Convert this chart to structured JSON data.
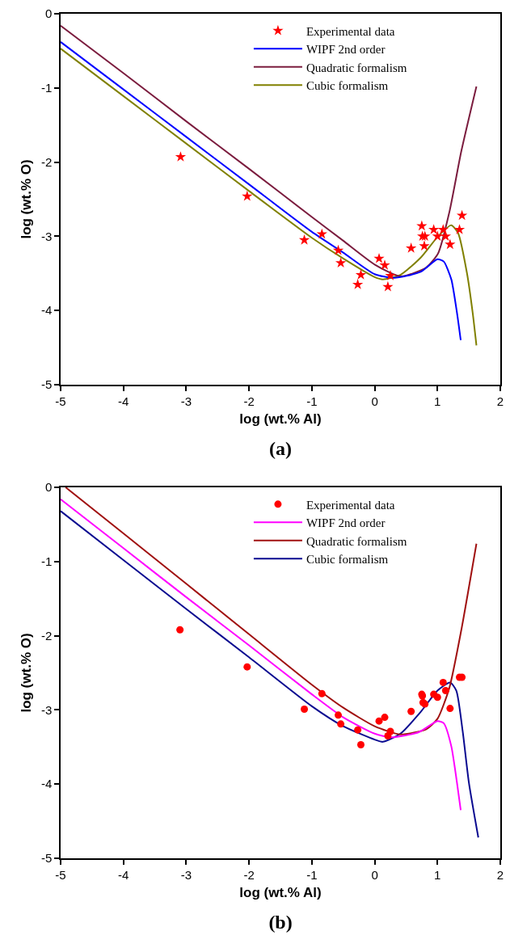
{
  "chart_data": [
    {
      "type": "scatter",
      "title": "(a)",
      "xlabel": "log (wt.% Al)",
      "ylabel": "log (wt.% O)",
      "xlim": [
        -5,
        2
      ],
      "ylim": [
        -5,
        0
      ],
      "xticks": [
        -5,
        -4,
        -3,
        -2,
        -1,
        0,
        1,
        2
      ],
      "yticks": [
        -5,
        -4,
        -3,
        -2,
        -1,
        0
      ],
      "grid": false,
      "legend": "top right",
      "series": [
        {
          "name": "Experimental data",
          "marker": "star",
          "color": "#ff0000",
          "x": [
            -3.09,
            -2.03,
            -1.12,
            -0.84,
            -0.58,
            -0.54,
            -0.27,
            -0.22,
            0.07,
            0.16,
            0.21,
            0.25,
            0.58,
            0.75,
            0.76,
            0.8,
            0.79,
            0.94,
            1.0,
            1.09,
            1.13,
            1.2,
            1.35,
            1.39
          ],
          "values": [
            -1.93,
            -2.46,
            -3.05,
            -2.97,
            -3.19,
            -3.36,
            -3.65,
            -3.52,
            -3.3,
            -3.39,
            -3.68,
            -3.53,
            -3.16,
            -2.86,
            -3.0,
            -3.0,
            -3.13,
            -2.91,
            -3.0,
            -2.91,
            -3.0,
            -3.11,
            -2.91,
            -2.72
          ]
        },
        {
          "name": "WIPF 2nd order",
          "type": "line",
          "color": "#0000ff",
          "x": [
            -5,
            -4,
            -3,
            -2,
            -1,
            -0.5,
            0,
            0.31,
            0.73,
            1.0,
            1.1,
            1.22,
            1.31,
            1.37
          ],
          "values": [
            -0.38,
            -1.02,
            -1.66,
            -2.3,
            -2.94,
            -3.22,
            -3.51,
            -3.56,
            -3.48,
            -3.31,
            -3.34,
            -3.58,
            -4.03,
            -4.4
          ]
        },
        {
          "name": "Quadratic formalism",
          "type": "line",
          "color": "#7b1c3e",
          "x": [
            -5,
            -4,
            -3,
            -2,
            -1,
            -0.5,
            0,
            0.41,
            0.82,
            1.01,
            1.19,
            1.38,
            1.62
          ],
          "values": [
            -0.16,
            -0.8,
            -1.45,
            -2.09,
            -2.74,
            -3.06,
            -3.38,
            -3.54,
            -3.42,
            -3.23,
            -2.67,
            -1.85,
            -0.98
          ]
        },
        {
          "name": "Cubic formalism",
          "type": "line",
          "color": "#808000",
          "x": [
            -5,
            -4,
            -3,
            -2,
            -1,
            -0.5,
            0,
            0.13,
            0.41,
            0.73,
            1.01,
            1.22,
            1.33,
            1.47,
            1.56,
            1.62
          ],
          "values": [
            -0.47,
            -1.11,
            -1.75,
            -2.39,
            -3.02,
            -3.3,
            -3.55,
            -3.58,
            -3.52,
            -3.29,
            -3.0,
            -2.85,
            -2.96,
            -3.5,
            -4.03,
            -4.47
          ]
        }
      ]
    },
    {
      "type": "scatter",
      "title": "(b)",
      "xlabel": "log (wt.% Al)",
      "ylabel": "log (wt.% O)",
      "xlim": [
        -5,
        2
      ],
      "ylim": [
        -5,
        0
      ],
      "xticks": [
        -5,
        -4,
        -3,
        -2,
        -1,
        0,
        1,
        2
      ],
      "yticks": [
        -5,
        -4,
        -3,
        -2,
        -1,
        0
      ],
      "grid": false,
      "legend": "top right",
      "series": [
        {
          "name": "Experimental data",
          "marker": "circle",
          "color": "#ff0000",
          "x": [
            -3.1,
            -2.03,
            -1.12,
            -0.84,
            -0.58,
            -0.54,
            -0.27,
            -0.22,
            0.07,
            0.16,
            0.21,
            0.25,
            0.58,
            0.75,
            0.76,
            0.77,
            0.8,
            0.94,
            1.0,
            1.09,
            1.13,
            1.2,
            1.35,
            1.39
          ],
          "values": [
            -1.92,
            -2.42,
            -2.99,
            -2.78,
            -3.07,
            -3.19,
            -3.27,
            -3.47,
            -3.15,
            -3.1,
            -3.35,
            -3.29,
            -3.02,
            -2.79,
            -2.81,
            -2.9,
            -2.92,
            -2.79,
            -2.83,
            -2.63,
            -2.74,
            -2.98,
            -2.56,
            -2.56
          ]
        },
        {
          "name": "WIPF 2nd order",
          "type": "line",
          "color": "#ff00ff",
          "x": [
            -5,
            -4,
            -3,
            -2,
            -1,
            -0.5,
            0,
            0.27,
            0.7,
            1.0,
            1.1,
            1.22,
            1.31,
            1.37
          ],
          "values": [
            -0.16,
            -0.82,
            -1.48,
            -2.13,
            -2.79,
            -3.1,
            -3.32,
            -3.37,
            -3.3,
            -3.15,
            -3.18,
            -3.49,
            -3.98,
            -4.35
          ]
        },
        {
          "name": "Quadratic formalism",
          "type": "line",
          "color": "#a01010",
          "x": [
            -4.92,
            -4,
            -3,
            -2,
            -1,
            -0.5,
            0,
            0.41,
            0.82,
            1.0,
            1.19,
            1.38,
            1.62
          ],
          "values": [
            0,
            -0.62,
            -1.3,
            -1.98,
            -2.66,
            -2.97,
            -3.22,
            -3.33,
            -3.26,
            -3.12,
            -2.7,
            -1.92,
            -0.76
          ]
        },
        {
          "name": "Cubic formalism",
          "type": "line",
          "color": "#0a0a90",
          "x": [
            -5,
            -4,
            -3,
            -2,
            -1,
            -0.5,
            0,
            0.13,
            0.41,
            0.73,
            1.0,
            1.2,
            1.3,
            1.4,
            1.5,
            1.65
          ],
          "values": [
            -0.32,
            -0.98,
            -1.64,
            -2.29,
            -2.95,
            -3.22,
            -3.4,
            -3.43,
            -3.32,
            -3.03,
            -2.74,
            -2.63,
            -2.74,
            -3.28,
            -3.98,
            -4.72
          ]
        }
      ]
    }
  ]
}
